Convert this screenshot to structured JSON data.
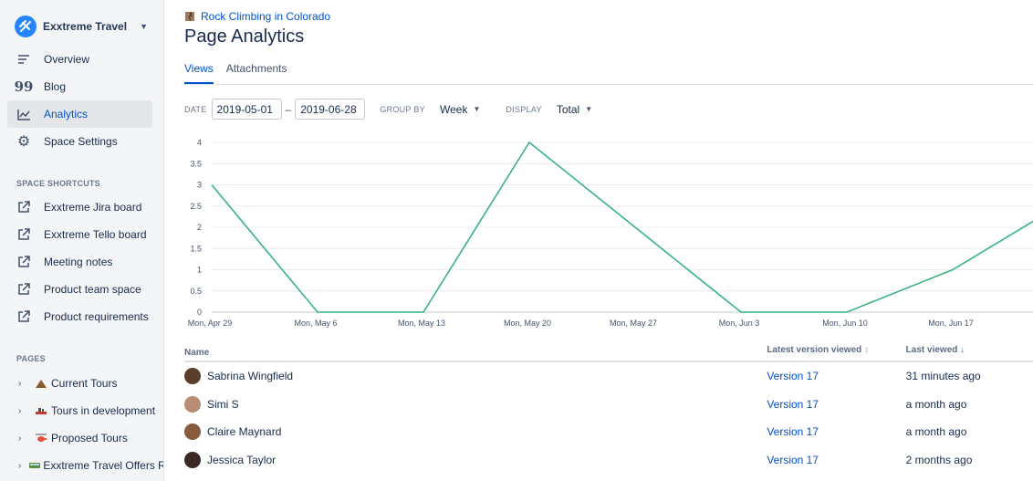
{
  "space": {
    "name": "Exxtreme Travel"
  },
  "nav": [
    {
      "label": "Overview",
      "icon": "overview-icon"
    },
    {
      "label": "Blog",
      "icon": "blog-quote-icon"
    },
    {
      "label": "Analytics",
      "icon": "analytics-icon",
      "active": true
    },
    {
      "label": "Space Settings",
      "icon": "gear-icon"
    }
  ],
  "shortcuts": {
    "title": "SPACE SHORTCUTS",
    "items": [
      "Exxtreme Jira board",
      "Exxtreme Tello board",
      "Meeting notes",
      "Product team space",
      "Product requirements"
    ]
  },
  "pages": {
    "title": "PAGES",
    "items": [
      "Current Tours",
      "Tours in development",
      "Proposed Tours",
      "Exxtreme Travel Offers Ro"
    ]
  },
  "breadcrumb": "Rock Climbing in Colorado",
  "title": "Page Analytics",
  "tabs": [
    "Views",
    "Attachments"
  ],
  "filters": {
    "date_label": "DATE",
    "date_from": "2019-05-01",
    "date_sep": "–",
    "date_to": "2019-06-28",
    "group_label": "GROUP BY",
    "group_value": "Week",
    "display_label": "DISPLAY",
    "display_value": "Total"
  },
  "chart_data": {
    "type": "line",
    "categories": [
      "Mon, Apr 29",
      "Mon, May 6",
      "Mon, May 13",
      "Mon, May 20",
      "Mon, May 27",
      "Mon, Jun 3",
      "Mon, Jun 10",
      "Mon, Jun 17",
      "Mon, Jun 24"
    ],
    "values": [
      3,
      0,
      0,
      4,
      2,
      0,
      0,
      1,
      2.5
    ],
    "ylim": [
      0,
      4
    ],
    "yticks": [
      "0",
      "0.5",
      "1",
      "1.5",
      "2",
      "2.5",
      "3",
      "3.5",
      "4"
    ],
    "grid": true,
    "color": "#36B37E"
  },
  "table": {
    "headers": [
      "Name",
      "Latest version viewed",
      "Last viewed"
    ],
    "rows": [
      {
        "name": "Sabrina Wingfield",
        "version": "Version 17",
        "last": "31 minutes ago"
      },
      {
        "name": "Simi S",
        "version": "Version 17",
        "last": "a month ago"
      },
      {
        "name": "Claire Maynard",
        "version": "Version 17",
        "last": "a month ago"
      },
      {
        "name": "Jessica Taylor",
        "version": "Version 17",
        "last": "2 months ago"
      }
    ]
  },
  "colors": {
    "accent": "#0052CC",
    "line": "#36B37E"
  }
}
